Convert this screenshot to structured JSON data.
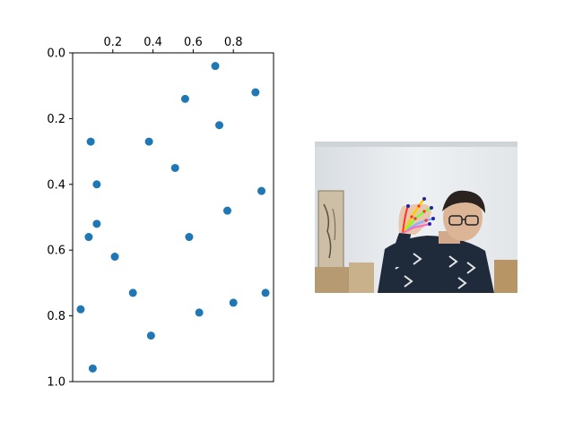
{
  "chart_data": {
    "type": "scatter",
    "title": "",
    "xlabel": "",
    "ylabel": "",
    "xlim": [
      0,
      1
    ],
    "ylim": [
      1,
      0
    ],
    "x_axis_position": "top",
    "y_axis_inverted": true,
    "grid": false,
    "legend": null,
    "marker_color": "#1f77b4",
    "x_ticks": [
      0.2,
      0.4,
      0.6,
      0.8
    ],
    "x_tick_labels": [
      "0.2",
      "0.4",
      "0.6",
      "0.8"
    ],
    "y_ticks": [
      0.0,
      0.2,
      0.4,
      0.6,
      0.8,
      1.0
    ],
    "y_tick_labels": [
      "0.0",
      "0.2",
      "0.4",
      "0.6",
      "0.8",
      "1.0"
    ],
    "points": [
      {
        "x": 0.71,
        "y": 0.04
      },
      {
        "x": 0.56,
        "y": 0.14
      },
      {
        "x": 0.91,
        "y": 0.12
      },
      {
        "x": 0.73,
        "y": 0.22
      },
      {
        "x": 0.09,
        "y": 0.27
      },
      {
        "x": 0.38,
        "y": 0.27
      },
      {
        "x": 0.51,
        "y": 0.35
      },
      {
        "x": 0.12,
        "y": 0.4
      },
      {
        "x": 0.94,
        "y": 0.42
      },
      {
        "x": 0.77,
        "y": 0.48
      },
      {
        "x": 0.12,
        "y": 0.52
      },
      {
        "x": 0.08,
        "y": 0.56
      },
      {
        "x": 0.58,
        "y": 0.56
      },
      {
        "x": 0.21,
        "y": 0.62
      },
      {
        "x": 0.3,
        "y": 0.73
      },
      {
        "x": 0.96,
        "y": 0.73
      },
      {
        "x": 0.04,
        "y": 0.78
      },
      {
        "x": 0.8,
        "y": 0.76
      },
      {
        "x": 0.63,
        "y": 0.79
      },
      {
        "x": 0.39,
        "y": 0.86
      },
      {
        "x": 0.1,
        "y": 0.96
      }
    ]
  }
}
